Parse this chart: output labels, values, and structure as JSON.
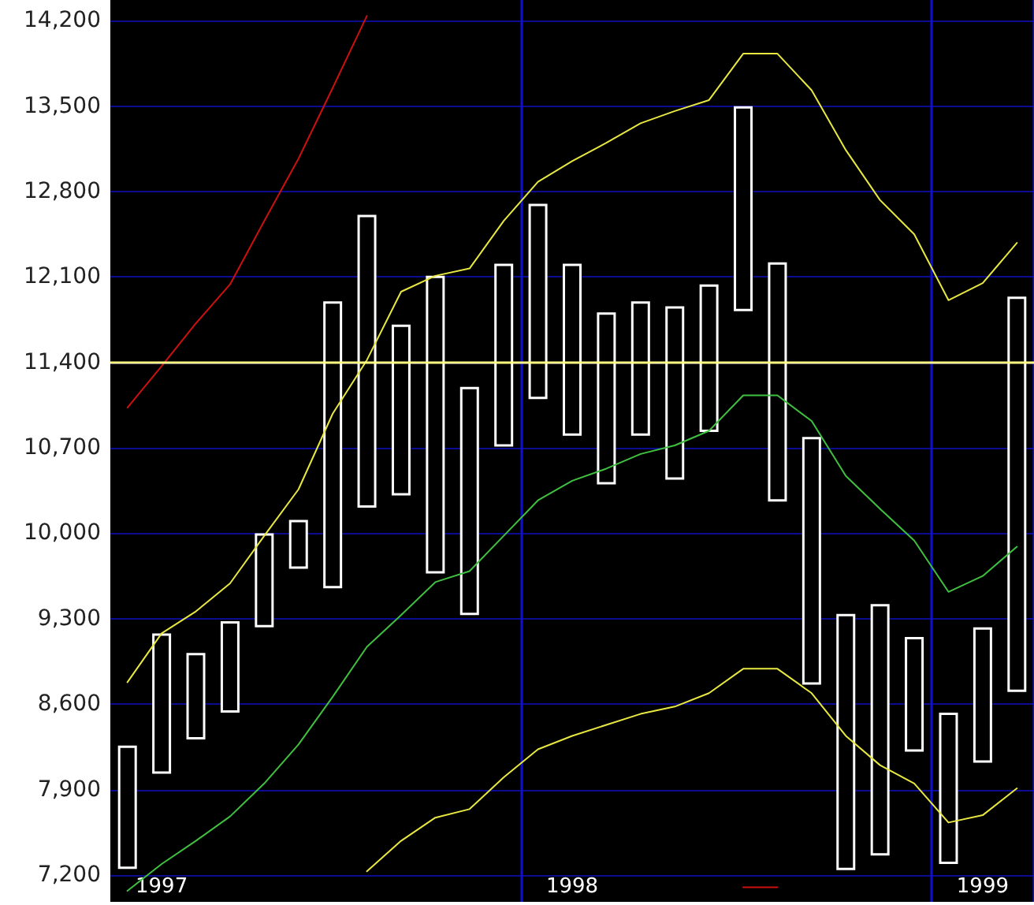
{
  "chart_data": {
    "type": "bar",
    "categories": [
      null,
      "1997",
      null,
      null,
      null,
      null,
      null,
      null,
      null,
      null,
      null,
      null,
      null,
      "1998",
      null,
      null,
      null,
      null,
      null,
      null,
      null,
      null,
      null,
      null,
      null,
      "1999",
      null
    ],
    "series": [
      {
        "color": "#ffffff",
        "base": [
          7250,
          8030,
          8310,
          8530,
          9230,
          9710,
          9550,
          10210,
          10310,
          9670,
          9330,
          10710,
          11100,
          10800,
          10400,
          10800,
          10440,
          10830,
          11820,
          10260,
          8760,
          7240,
          7360,
          8210,
          7290,
          8120,
          8700
        ],
        "values": [
          1010,
          1150,
          710,
          750,
          770,
          400,
          2350,
          2400,
          1400,
          2440,
          1870,
          1500,
          1600,
          1410,
          1410,
          1100,
          1420,
          1210,
          1680,
          1960,
          2030,
          2100,
          2060,
          940,
          1240,
          1110,
          3240
        ]
      },
      {
        "type": "line",
        "color": "#cc1010",
        "values": [
          11030,
          11370,
          11720,
          12040,
          12560,
          13070,
          13650,
          14240,
          null,
          null,
          null,
          null,
          null,
          null,
          null,
          null,
          null,
          null,
          7100,
          7100,
          null,
          null,
          null,
          null,
          null,
          null,
          null
        ]
      },
      {
        "type": "line",
        "color": "#e8e840",
        "values": [
          8780,
          9180,
          9360,
          9590,
          9980,
          10360,
          10980,
          11420,
          11980,
          12110,
          12170,
          12560,
          12880,
          13050,
          13200,
          13360,
          13460,
          13550,
          13930,
          13930,
          13630,
          13140,
          12730,
          12450,
          11910,
          12050,
          12380
        ]
      },
      {
        "type": "line",
        "color": "#40c040",
        "values": [
          7070,
          7290,
          7480,
          7680,
          7950,
          8270,
          8660,
          9070,
          9330,
          9600,
          9690,
          9980,
          10270,
          10430,
          10530,
          10650,
          10720,
          10840,
          11130,
          11130,
          10920,
          10470,
          10200,
          9940,
          9520,
          9650,
          9890
        ]
      },
      {
        "type": "line",
        "color": "#e8e840",
        "values": [
          null,
          null,
          null,
          null,
          null,
          null,
          null,
          7230,
          7480,
          7670,
          7740,
          8000,
          8230,
          8340,
          8430,
          8520,
          8580,
          8690,
          8890,
          8890,
          8690,
          8340,
          8100,
          7950,
          7630,
          7690,
          7910
        ]
      }
    ],
    "ylim": [
      6980,
      14370
    ],
    "yticks": [
      {
        "value": 7200,
        "label": "7,200"
      },
      {
        "value": 7900,
        "label": "7,900"
      },
      {
        "value": 8600,
        "label": "8,600"
      },
      {
        "value": 9300,
        "label": "9,300"
      },
      {
        "value": 10000,
        "label": "10,000"
      },
      {
        "value": 10700,
        "label": "10,700"
      },
      {
        "value": 11400,
        "label": "11,400"
      },
      {
        "value": 12100,
        "label": "12,100"
      },
      {
        "value": 12800,
        "label": "12,800"
      },
      {
        "value": 13500,
        "label": "13,500"
      },
      {
        "value": 14200,
        "label": "14,200"
      }
    ],
    "ref_lines": [
      {
        "axis": "y",
        "value": 11400,
        "color": "#ffff80"
      }
    ],
    "grid": true,
    "marker": "none"
  }
}
